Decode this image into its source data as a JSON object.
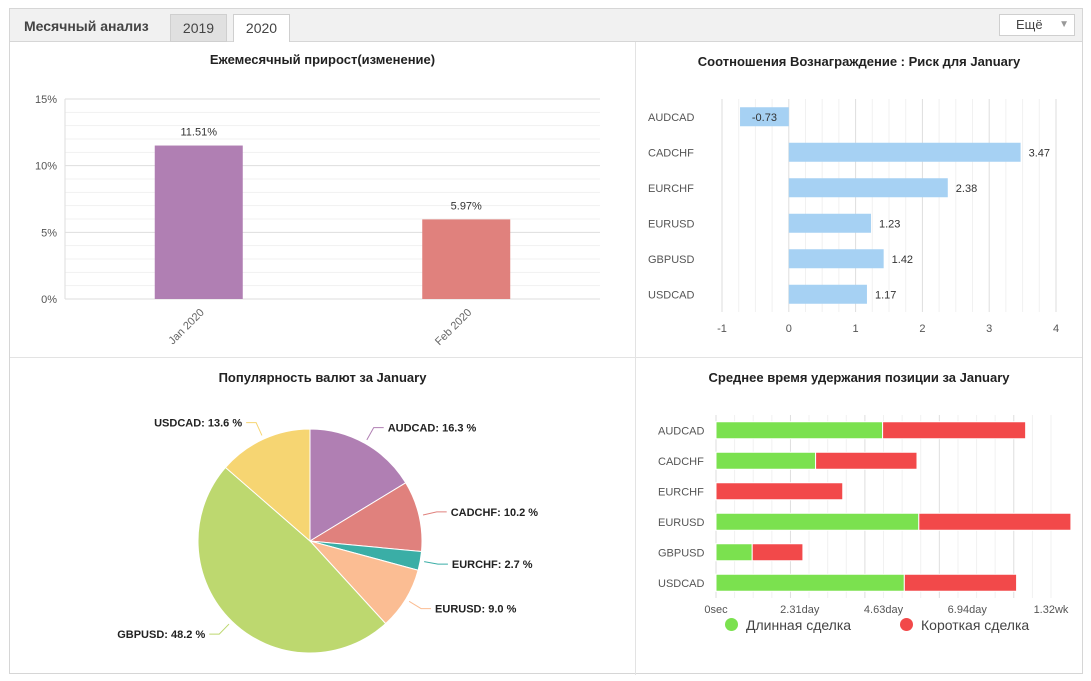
{
  "header": {
    "title": "Месячный анализ",
    "tabs": [
      {
        "label": "2019",
        "active": false
      },
      {
        "label": "2020",
        "active": true
      }
    ],
    "more_label": "Ещё"
  },
  "chart_data": [
    {
      "type": "bar",
      "title": "Ежемесячный прирост(изменение)",
      "categories": [
        "Jan 2020",
        "Feb 2020"
      ],
      "values": [
        11.51,
        5.97
      ],
      "data_labels": [
        "11.51%",
        "5.97%"
      ],
      "colors": [
        "#b07fb3",
        "#e0817d"
      ],
      "yticks": [
        "0%",
        "5%",
        "10%",
        "15%"
      ],
      "ylim": [
        0,
        15
      ],
      "grid": true
    },
    {
      "type": "bar",
      "orientation": "horizontal",
      "title": "Соотношения Вознаграждение : Риск для January",
      "categories": [
        "AUDCAD",
        "CADCHF",
        "EURCHF",
        "EURUSD",
        "GBPUSD",
        "USDCAD"
      ],
      "values": [
        -0.73,
        3.47,
        2.38,
        1.23,
        1.42,
        1.17
      ],
      "data_labels": [
        "-0.73",
        "3.47",
        "2.38",
        "1.23",
        "1.42",
        "1.17"
      ],
      "color": "#a6d1f3",
      "xticks": [
        "-1",
        "0",
        "1",
        "2",
        "3",
        "4"
      ],
      "xlim": [
        -1,
        4
      ],
      "grid": true
    },
    {
      "type": "pie",
      "title": "Популярность валют за January",
      "slices": [
        {
          "label": "AUDCAD",
          "value": 16.3,
          "text": "AUDCAD: 16.3 %",
          "color": "#b07fb3"
        },
        {
          "label": "CADCHF",
          "value": 10.2,
          "text": "CADCHF: 10.2 %",
          "color": "#e0817d"
        },
        {
          "label": "EURCHF",
          "value": 2.7,
          "text": "EURCHF: 2.7 %",
          "color": "#3aaea6"
        },
        {
          "label": "EURUSD",
          "value": 9.0,
          "text": "EURUSD: 9.0 %",
          "color": "#fbbd93"
        },
        {
          "label": "GBPUSD",
          "value": 48.2,
          "text": "GBPUSD: 48.2 %",
          "color": "#bdd86f"
        },
        {
          "label": "USDCAD",
          "value": 13.6,
          "text": "USDCAD: 13.6 %",
          "color": "#f6d572"
        }
      ]
    },
    {
      "type": "bar",
      "orientation": "horizontal",
      "stacked": true,
      "title": "Среднее время удержания позиции за January",
      "categories": [
        "AUDCAD",
        "CADCHF",
        "EURCHF",
        "EURUSD",
        "GBPUSD",
        "USDCAD"
      ],
      "xticks": [
        "0sec",
        "2.31day",
        "4.63day",
        "6.94day",
        "1.32wk"
      ],
      "xlim_days": [
        0,
        9.25
      ],
      "grid": true,
      "series": [
        {
          "name": "Длинная сделка",
          "color": "#7be14f",
          "values_days": [
            4.6,
            2.75,
            0,
            5.6,
            1.0,
            5.2
          ]
        },
        {
          "name": "Короткая сделка",
          "color": "#f2494a",
          "values_days": [
            3.95,
            2.8,
            3.5,
            4.2,
            1.4,
            3.1
          ]
        }
      ]
    }
  ]
}
